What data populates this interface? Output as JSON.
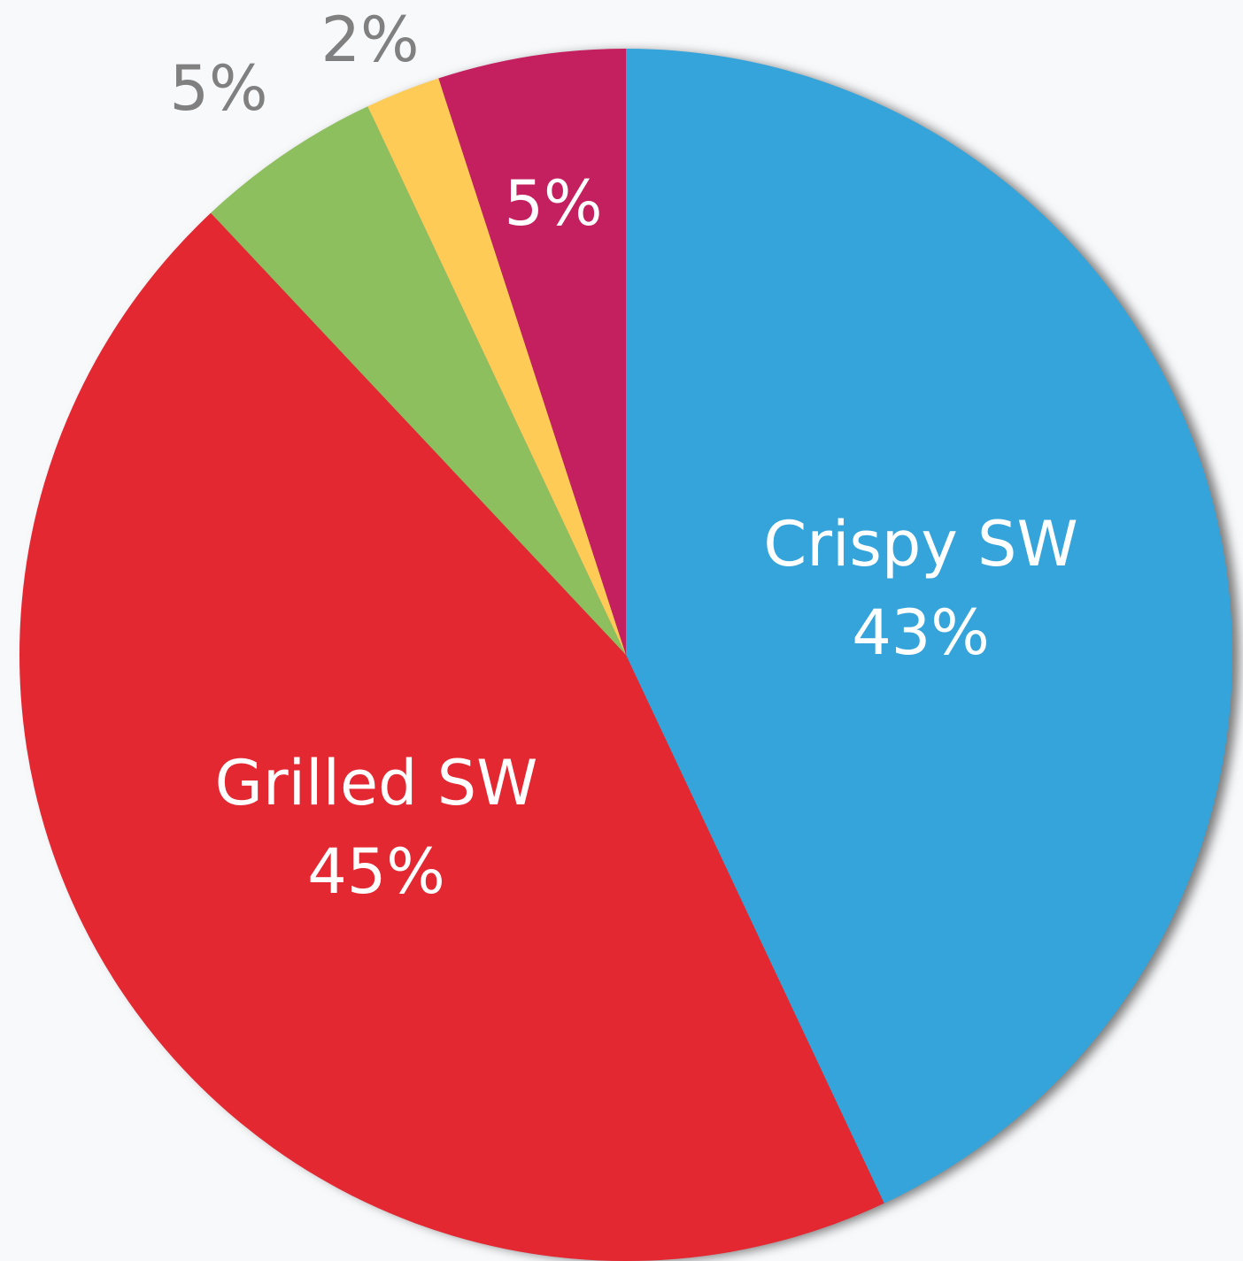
{
  "chart_data": {
    "type": "pie",
    "categories": [
      "Crispy SW",
      "Grilled SW",
      null,
      null,
      null
    ],
    "values": [
      43,
      45,
      5,
      2,
      5
    ],
    "value_labels": [
      "43%",
      "45%",
      "5%",
      "2%",
      "5%"
    ],
    "colors": [
      "#35a4db",
      "#e32832",
      "#8dbf5e",
      "#fecb57",
      "#c41f5e"
    ]
  }
}
